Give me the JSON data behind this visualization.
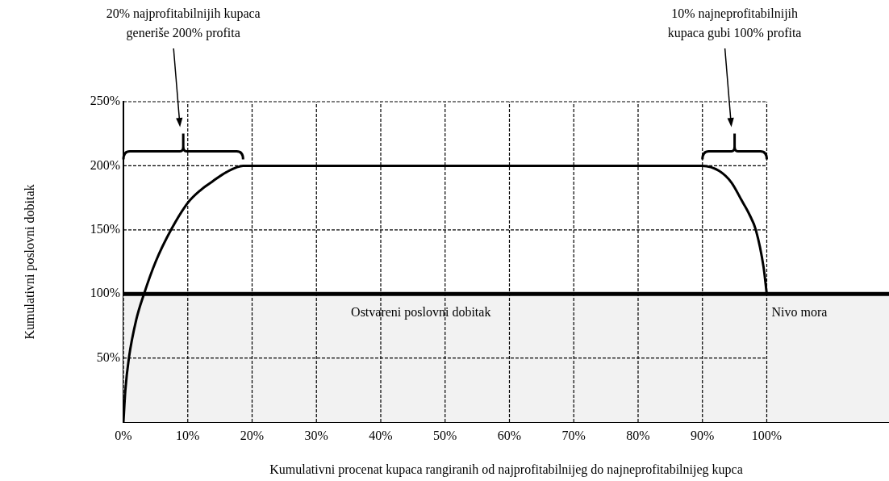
{
  "chart_data": {
    "type": "line",
    "xlabel": "Kumulativni procenat kupaca rangiranih od najprofitabilnijeg do najneprofitabilnijeg kupca",
    "ylabel": "Kumulativni poslovni dobitak",
    "x": [
      0,
      0.3,
      0.85,
      2,
      3.2,
      5,
      7.4,
      10,
      12,
      13.9,
      16,
      18.6,
      90,
      92.6,
      94.5,
      96.1,
      97.3,
      98.3,
      99.5,
      100
    ],
    "series": [
      {
        "color": "#000000",
        "values": [
          0,
          25,
          50,
          80,
          100,
          125,
          150,
          171,
          181,
          188,
          195,
          200,
          200,
          196,
          187,
          173,
          162,
          150,
          121,
          100
        ]
      }
    ],
    "xlim": [
      0,
      119
    ],
    "xticks": [
      {
        "value": 0,
        "label": "0%"
      },
      {
        "value": 10,
        "label": "10%"
      },
      {
        "value": 20,
        "label": "20%"
      },
      {
        "value": 30,
        "label": "30%"
      },
      {
        "value": 40,
        "label": "40%"
      },
      {
        "value": 50,
        "label": "50%"
      },
      {
        "value": 60,
        "label": "60%"
      },
      {
        "value": 70,
        "label": "70%"
      },
      {
        "value": 80,
        "label": "80%"
      },
      {
        "value": 90,
        "label": "90%"
      },
      {
        "value": 100,
        "label": "100%"
      }
    ],
    "ylim": [
      0,
      250
    ],
    "yticks": [
      {
        "value": 50,
        "label": "50%"
      },
      {
        "value": 100,
        "label": "100%"
      },
      {
        "value": 150,
        "label": "150%"
      },
      {
        "value": 200,
        "label": "200%"
      },
      {
        "value": 250,
        "label": "250%"
      }
    ],
    "grid": true,
    "legend": false,
    "marker": "none",
    "line_style": "solid",
    "bands": [
      {
        "axis": "y",
        "from": 0,
        "to": 100,
        "label": "Ostvareni poslovni dobitak",
        "color": "#f2f2f2"
      }
    ],
    "ref_lines": [
      {
        "axis": "y",
        "value": 100,
        "label": "Nivo mora",
        "color": "#000000"
      }
    ],
    "annotations": [
      "20% najprofitabilnijih kupaca\ngeneriše 200% profita",
      "10% najneprofitabilnijih\nkupaca gubi 100% profita"
    ]
  }
}
